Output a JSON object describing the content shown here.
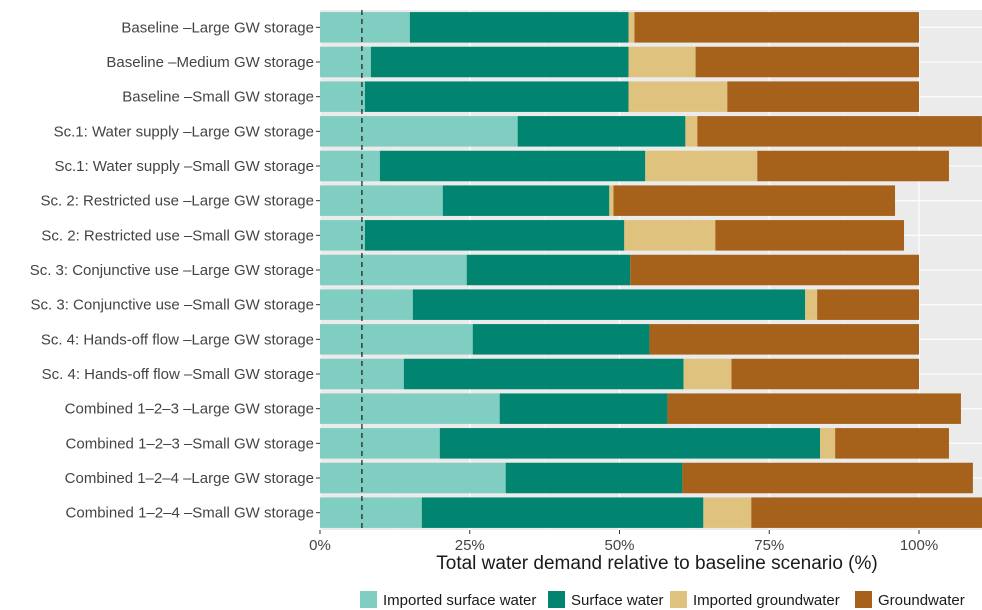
{
  "chart_data": {
    "type": "bar",
    "orientation": "horizontal",
    "stacked": true,
    "xlabel": "Total water demand relative to baseline scenario (%)",
    "ylabel": "",
    "title": "",
    "xlim": [
      0,
      110
    ],
    "x_ticks": [
      {
        "value": 0,
        "label": "0%"
      },
      {
        "value": 25,
        "label": "25%"
      },
      {
        "value": 50,
        "label": "50%"
      },
      {
        "value": 75,
        "label": "75%"
      },
      {
        "value": 100,
        "label": "100%"
      }
    ],
    "reference_line": {
      "value": 7,
      "style": "dashed"
    },
    "grid": true,
    "legend_position": "bottom",
    "categories": [
      "Baseline –Large GW storage",
      "Baseline –Medium GW storage",
      "Baseline –Small GW storage",
      "Sc.1: Water supply –Large GW storage",
      "Sc.1: Water supply –Small GW storage",
      "Sc. 2: Restricted use –Large GW storage",
      "Sc. 2: Restricted use –Small GW storage",
      "Sc. 3: Conjunctive use –Large GW storage",
      "Sc. 3: Conjunctive use –Small GW storage",
      "Sc. 4: Hands-off flow –Large GW storage",
      "Sc. 4: Hands-off flow –Small GW storage",
      "Combined 1–2–3 –Large GW storage",
      "Combined 1–2–3 –Small GW storage",
      "Combined 1–2–4 –Large GW storage",
      "Combined 1–2–4 –Small GW storage"
    ],
    "series": [
      {
        "name": "Imported surface water",
        "color": "#80CDC1",
        "values": [
          15,
          8.5,
          7.5,
          33,
          10,
          20.5,
          7.5,
          24.5,
          15.5,
          25.5,
          14,
          30,
          20,
          31,
          17
        ]
      },
      {
        "name": "Surface water",
        "color": "#018571",
        "values": [
          36.5,
          43,
          44,
          28,
          44.3,
          27.8,
          43.3,
          27.3,
          65.5,
          29.5,
          46.7,
          28,
          63.5,
          29.5,
          47
        ]
      },
      {
        "name": "Imported groundwater",
        "color": "#DFC27D",
        "values": [
          1,
          11.2,
          16.5,
          2,
          18.7,
          0.7,
          15.2,
          0,
          2,
          0,
          8,
          0,
          2.5,
          0,
          8
        ]
      },
      {
        "name": "Groundwater",
        "color": "#A6611A",
        "values": [
          47.5,
          37.3,
          32,
          47.5,
          32,
          47,
          31.5,
          48.2,
          17,
          45,
          31.3,
          49,
          19,
          48.5,
          39
        ]
      }
    ]
  }
}
